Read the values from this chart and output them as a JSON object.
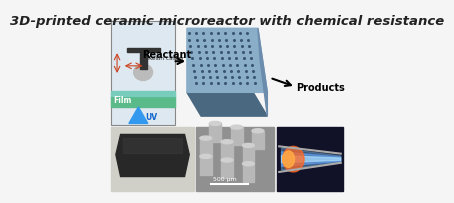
{
  "title": "3D-printed ceramic microreactor with chemical resistance",
  "title_fontsize": 9.5,
  "title_color": "#222222",
  "bg_color": "#f5f5f5",
  "top_left_box_label_film": "Film",
  "top_left_box_label_uv": "UV",
  "top_left_box_label_resin": "Resin caster",
  "top_center_label_reactant": "Reactant",
  "top_center_label_products": "Products",
  "bottom_mid_scale_label": "500 μm"
}
